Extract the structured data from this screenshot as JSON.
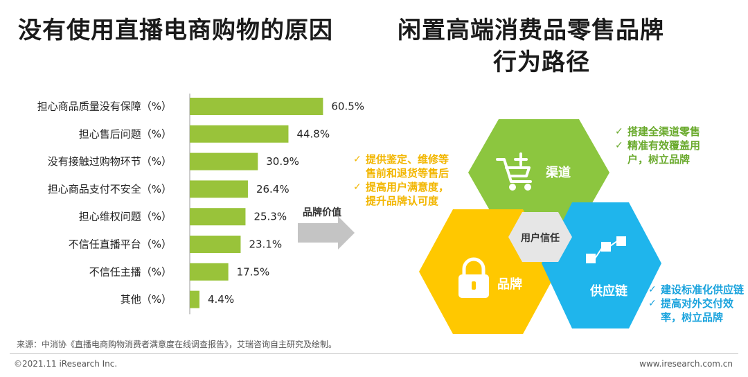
{
  "title_left": "没有使用直播电商购物的原因",
  "title_right_line1": "闲置高端消费品零售品牌",
  "title_right_line2": "行为路径",
  "chart_data": {
    "type": "bar",
    "orientation": "horizontal",
    "title": "没有使用直播电商购物的原因",
    "categories": [
      "担心商品质量没有保障（%）",
      "担心售后问题（%）",
      "没有接触过购物环节（%）",
      "担心商品支付不安全（%）",
      "担心维权问题（%）",
      "不信任直播平台（%）",
      "不信任主播（%）",
      "其他（%）"
    ],
    "values": [
      60.5,
      44.8,
      30.9,
      26.4,
      25.3,
      23.1,
      17.5,
      4.4
    ],
    "value_labels": [
      "60.5%",
      "44.8%",
      "30.9%",
      "26.4%",
      "25.3%",
      "23.1%",
      "17.5%",
      "4.4%"
    ],
    "xlim": [
      0,
      100
    ],
    "color": "#99c33a"
  },
  "diagram": {
    "arrow_label": "品牌价值",
    "center_label": "用户信任",
    "channel_label": "渠道",
    "brand_label": "品牌",
    "supply_label": "供应链",
    "colors": {
      "channel": "#8cc63f",
      "brand": "#ffc800",
      "supply": "#1fb5ec",
      "center": "#e6e6e6"
    },
    "channel_bullets": [
      "搭建全渠道零售",
      "精准有效覆盖用户，树立品牌"
    ],
    "brand_bullets": [
      "提供鉴定、维修等售前和退货等售后",
      "提高用户满意度，提升品牌认可度"
    ],
    "supply_bullets": [
      "建设标准化供应链",
      "提高对外交付效率，树立品牌"
    ],
    "check_mark": "✓"
  },
  "source": "来源：中消协《直播电商购物消费者满意度在线调查报告》，艾瑞咨询自主研究及绘制。",
  "footer_left": "©2021.11 iResearch Inc.",
  "footer_right": "www.iresearch.com.cn"
}
